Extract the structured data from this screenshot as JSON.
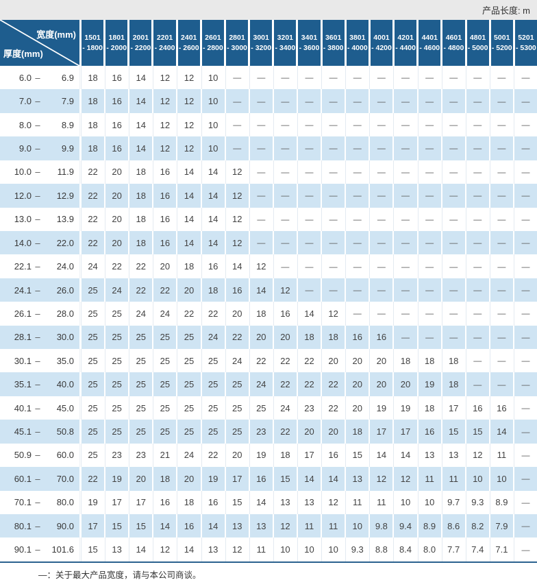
{
  "colors": {
    "header_blue": "#1e5d8e",
    "row_alt_blue": "#cfe4f3",
    "topbar_gray": "#e9e9e9",
    "divider_blue": "#2a618e"
  },
  "top_bar": {
    "length_label": "产品长度:  m"
  },
  "table": {
    "corner": {
      "width_label": "宽度(mm)",
      "thickness_label": "厚度(mm)"
    },
    "columns": [
      {
        "line1": "1501",
        "line2": "- 1800"
      },
      {
        "line1": "1801",
        "line2": "- 2000"
      },
      {
        "line1": "2001",
        "line2": "- 2200"
      },
      {
        "line1": "2201",
        "line2": "- 2400"
      },
      {
        "line1": "2401",
        "line2": "- 2600"
      },
      {
        "line1": "2601",
        "line2": "- 2800"
      },
      {
        "line1": "2801",
        "line2": "- 3000"
      },
      {
        "line1": "3001",
        "line2": "- 3200"
      },
      {
        "line1": "3201",
        "line2": "- 3400"
      },
      {
        "line1": "3401",
        "line2": "- 3600"
      },
      {
        "line1": "3601",
        "line2": "- 3800"
      },
      {
        "line1": "3801",
        "line2": "- 4000"
      },
      {
        "line1": "4001",
        "line2": "- 4200"
      },
      {
        "line1": "4201",
        "line2": "- 4400"
      },
      {
        "line1": "4401",
        "line2": "- 4600"
      },
      {
        "line1": "4601",
        "line2": "- 4800"
      },
      {
        "line1": "4801",
        "line2": "- 5000"
      },
      {
        "line1": "5001",
        "line2": "- 5200"
      },
      {
        "line1": "5201",
        "line2": "- 5300"
      }
    ],
    "rows": [
      {
        "from": "6.0",
        "to": "6.9",
        "values": [
          "18",
          "16",
          "14",
          "12",
          "12",
          "10",
          "—",
          "—",
          "—",
          "—",
          "—",
          "—",
          "—",
          "—",
          "—",
          "—",
          "—",
          "—",
          "—"
        ]
      },
      {
        "from": "7.0",
        "to": "7.9",
        "values": [
          "18",
          "16",
          "14",
          "12",
          "12",
          "10",
          "—",
          "—",
          "—",
          "—",
          "—",
          "—",
          "—",
          "—",
          "—",
          "—",
          "—",
          "—",
          "—"
        ]
      },
      {
        "from": "8.0",
        "to": "8.9",
        "values": [
          "18",
          "16",
          "14",
          "12",
          "12",
          "10",
          "—",
          "—",
          "—",
          "—",
          "—",
          "—",
          "—",
          "—",
          "—",
          "—",
          "—",
          "—",
          "—"
        ]
      },
      {
        "from": "9.0",
        "to": "9.9",
        "values": [
          "18",
          "16",
          "14",
          "12",
          "12",
          "10",
          "—",
          "—",
          "—",
          "—",
          "—",
          "—",
          "—",
          "—",
          "—",
          "—",
          "—",
          "—",
          "—"
        ]
      },
      {
        "from": "10.0",
        "to": "11.9",
        "values": [
          "22",
          "20",
          "18",
          "16",
          "14",
          "14",
          "12",
          "—",
          "—",
          "—",
          "—",
          "—",
          "—",
          "—",
          "—",
          "—",
          "—",
          "—",
          "—"
        ]
      },
      {
        "from": "12.0",
        "to": "12.9",
        "values": [
          "22",
          "20",
          "18",
          "16",
          "14",
          "14",
          "12",
          "—",
          "—",
          "—",
          "—",
          "—",
          "—",
          "—",
          "—",
          "—",
          "—",
          "—",
          "—"
        ]
      },
      {
        "from": "13.0",
        "to": "13.9",
        "values": [
          "22",
          "20",
          "18",
          "16",
          "14",
          "14",
          "12",
          "—",
          "—",
          "—",
          "—",
          "—",
          "—",
          "—",
          "—",
          "—",
          "—",
          "—",
          "—"
        ]
      },
      {
        "from": "14.0",
        "to": "22.0",
        "values": [
          "22",
          "20",
          "18",
          "16",
          "14",
          "14",
          "12",
          "—",
          "—",
          "—",
          "—",
          "—",
          "—",
          "—",
          "—",
          "—",
          "—",
          "—",
          "—"
        ]
      },
      {
        "from": "22.1",
        "to": "24.0",
        "values": [
          "24",
          "22",
          "22",
          "20",
          "18",
          "16",
          "14",
          "12",
          "—",
          "—",
          "—",
          "—",
          "—",
          "—",
          "—",
          "—",
          "—",
          "—",
          "—"
        ]
      },
      {
        "from": "24.1",
        "to": "26.0",
        "values": [
          "25",
          "24",
          "22",
          "22",
          "20",
          "18",
          "16",
          "14",
          "12",
          "—",
          "—",
          "—",
          "—",
          "—",
          "—",
          "—",
          "—",
          "—",
          "—"
        ]
      },
      {
        "from": "26.1",
        "to": "28.0",
        "values": [
          "25",
          "25",
          "24",
          "24",
          "22",
          "22",
          "20",
          "18",
          "16",
          "14",
          "12",
          "—",
          "—",
          "—",
          "—",
          "—",
          "—",
          "—",
          "—"
        ]
      },
      {
        "from": "28.1",
        "to": "30.0",
        "values": [
          "25",
          "25",
          "25",
          "25",
          "25",
          "24",
          "22",
          "20",
          "20",
          "18",
          "18",
          "16",
          "16",
          "—",
          "—",
          "—",
          "—",
          "—",
          "—"
        ]
      },
      {
        "from": "30.1",
        "to": "35.0",
        "values": [
          "25",
          "25",
          "25",
          "25",
          "25",
          "25",
          "24",
          "22",
          "22",
          "22",
          "20",
          "20",
          "20",
          "18",
          "18",
          "18",
          "—",
          "—",
          "—"
        ]
      },
      {
        "from": "35.1",
        "to": "40.0",
        "values": [
          "25",
          "25",
          "25",
          "25",
          "25",
          "25",
          "25",
          "24",
          "22",
          "22",
          "22",
          "20",
          "20",
          "20",
          "19",
          "18",
          "—",
          "—",
          "—"
        ]
      },
      {
        "from": "40.1",
        "to": "45.0",
        "values": [
          "25",
          "25",
          "25",
          "25",
          "25",
          "25",
          "25",
          "25",
          "24",
          "23",
          "22",
          "20",
          "19",
          "19",
          "18",
          "17",
          "16",
          "16",
          "—"
        ]
      },
      {
        "from": "45.1",
        "to": "50.8",
        "values": [
          "25",
          "25",
          "25",
          "25",
          "25",
          "25",
          "25",
          "23",
          "22",
          "20",
          "20",
          "18",
          "17",
          "17",
          "16",
          "15",
          "15",
          "14",
          "—"
        ]
      },
      {
        "from": "50.9",
        "to": "60.0",
        "values": [
          "25",
          "23",
          "23",
          "21",
          "24",
          "22",
          "20",
          "19",
          "18",
          "17",
          "16",
          "15",
          "14",
          "14",
          "13",
          "13",
          "12",
          "11",
          "—"
        ]
      },
      {
        "from": "60.1",
        "to": "70.0",
        "values": [
          "22",
          "19",
          "20",
          "18",
          "20",
          "19",
          "17",
          "16",
          "15",
          "14",
          "14",
          "13",
          "12",
          "12",
          "11",
          "11",
          "10",
          "10",
          "—"
        ]
      },
      {
        "from": "70.1",
        "to": "80.0",
        "values": [
          "19",
          "17",
          "17",
          "16",
          "18",
          "16",
          "15",
          "14",
          "13",
          "13",
          "12",
          "11",
          "11",
          "10",
          "10",
          "9.7",
          "9.3",
          "8.9",
          "—"
        ]
      },
      {
        "from": "80.1",
        "to": "90.0",
        "values": [
          "17",
          "15",
          "15",
          "14",
          "16",
          "14",
          "13",
          "13",
          "12",
          "11",
          "11",
          "10",
          "9.8",
          "9.4",
          "8.9",
          "8.6",
          "8.2",
          "7.9",
          "—"
        ]
      },
      {
        "from": "90.1",
        "to": "101.6",
        "values": [
          "15",
          "13",
          "14",
          "12",
          "14",
          "13",
          "12",
          "11",
          "10",
          "10",
          "10",
          "9.3",
          "8.8",
          "8.4",
          "8.0",
          "7.7",
          "7.4",
          "7.1",
          "—"
        ]
      }
    ],
    "row_label_dash": "–"
  },
  "footer": {
    "note": "—：关于最大产品宽度，请与本公司商谈。"
  }
}
